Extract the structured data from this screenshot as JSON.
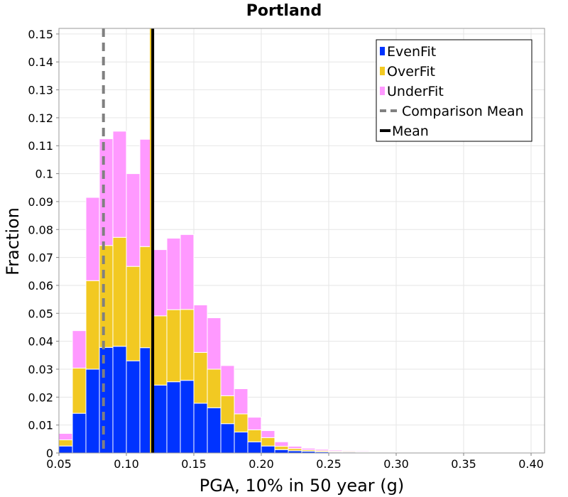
{
  "chart_data": {
    "type": "bar",
    "stacked": true,
    "title": "Portland",
    "xlabel": "PGA, 10% in 50 year (g)",
    "ylabel": "Fraction",
    "xlim": [
      0.05,
      0.41
    ],
    "ylim": [
      0,
      0.152
    ],
    "x_ticks": [
      "0.05",
      "0.10",
      "0.15",
      "0.20",
      "0.25",
      "0.30",
      "0.35",
      "0.40"
    ],
    "y_ticks": [
      "0",
      "0.01",
      "0.02",
      "0.03",
      "0.04",
      "0.05",
      "0.06",
      "0.07",
      "0.08",
      "0.09",
      "0.1",
      "0.11",
      "0.12",
      "0.13",
      "0.14",
      "0.15"
    ],
    "grid": true,
    "legend_position": "top-right",
    "bin_width": 0.01,
    "bin_starts": [
      0.05,
      0.06,
      0.07,
      0.08,
      0.09,
      0.1,
      0.11,
      0.12,
      0.13,
      0.14,
      0.15,
      0.16,
      0.17,
      0.18,
      0.19,
      0.2,
      0.21,
      0.22,
      0.23,
      0.24,
      0.25,
      0.26,
      0.27,
      0.28,
      0.29,
      0.3,
      0.31,
      0.32,
      0.33,
      0.34,
      0.35,
      0.36,
      0.37,
      0.38,
      0.39
    ],
    "series": [
      {
        "name": "EvenFit",
        "color": "#0033ff",
        "values": [
          0.0025,
          0.0142,
          0.03,
          0.0378,
          0.0382,
          0.033,
          0.0377,
          0.0243,
          0.0255,
          0.026,
          0.0178,
          0.0162,
          0.0105,
          0.0075,
          0.004,
          0.0025,
          0.0012,
          0.0008,
          0.0006,
          0.0004,
          0.0003,
          0.0003,
          0.0002,
          0.0002,
          0.0002,
          0.0001,
          0.0001,
          0.0001,
          0.0001,
          0.0001,
          0.0,
          0.0,
          0.0,
          0.0001,
          0.0001
        ]
      },
      {
        "name": "OverFit",
        "color": "#f2c922",
        "values": [
          0.0022,
          0.0162,
          0.0317,
          0.0365,
          0.039,
          0.0338,
          0.0362,
          0.0248,
          0.0258,
          0.0254,
          0.0182,
          0.0138,
          0.01,
          0.0065,
          0.0043,
          0.003,
          0.0012,
          0.0008,
          0.0005,
          0.0004,
          0.0003,
          0.0003,
          0.0002,
          0.0002,
          0.0001,
          0.0001,
          0.0001,
          0.0001,
          0.0,
          0.0,
          0.0,
          0.0,
          0.0,
          0.0001,
          0.0
        ]
      },
      {
        "name": "UnderFit",
        "color": "#ff99ff",
        "values": [
          0.0023,
          0.0134,
          0.0298,
          0.0382,
          0.038,
          0.0332,
          0.0384,
          0.0237,
          0.0256,
          0.0268,
          0.017,
          0.0184,
          0.0108,
          0.009,
          0.0045,
          0.0025,
          0.0016,
          0.0008,
          0.0006,
          0.0005,
          0.0004,
          0.0003,
          0.0003,
          0.0002,
          0.0001,
          0.0001,
          0.0001,
          0.0,
          0.0001,
          0.0,
          0.0,
          0.0,
          0.0,
          0.0001,
          0.0001
        ]
      }
    ],
    "reference_lines": [
      {
        "name": "Comparison Mean",
        "x": 0.083,
        "color": "#808080",
        "style": "dashed"
      },
      {
        "name": "Mean",
        "x": 0.119,
        "color": "#000000",
        "style": "solid"
      }
    ]
  }
}
